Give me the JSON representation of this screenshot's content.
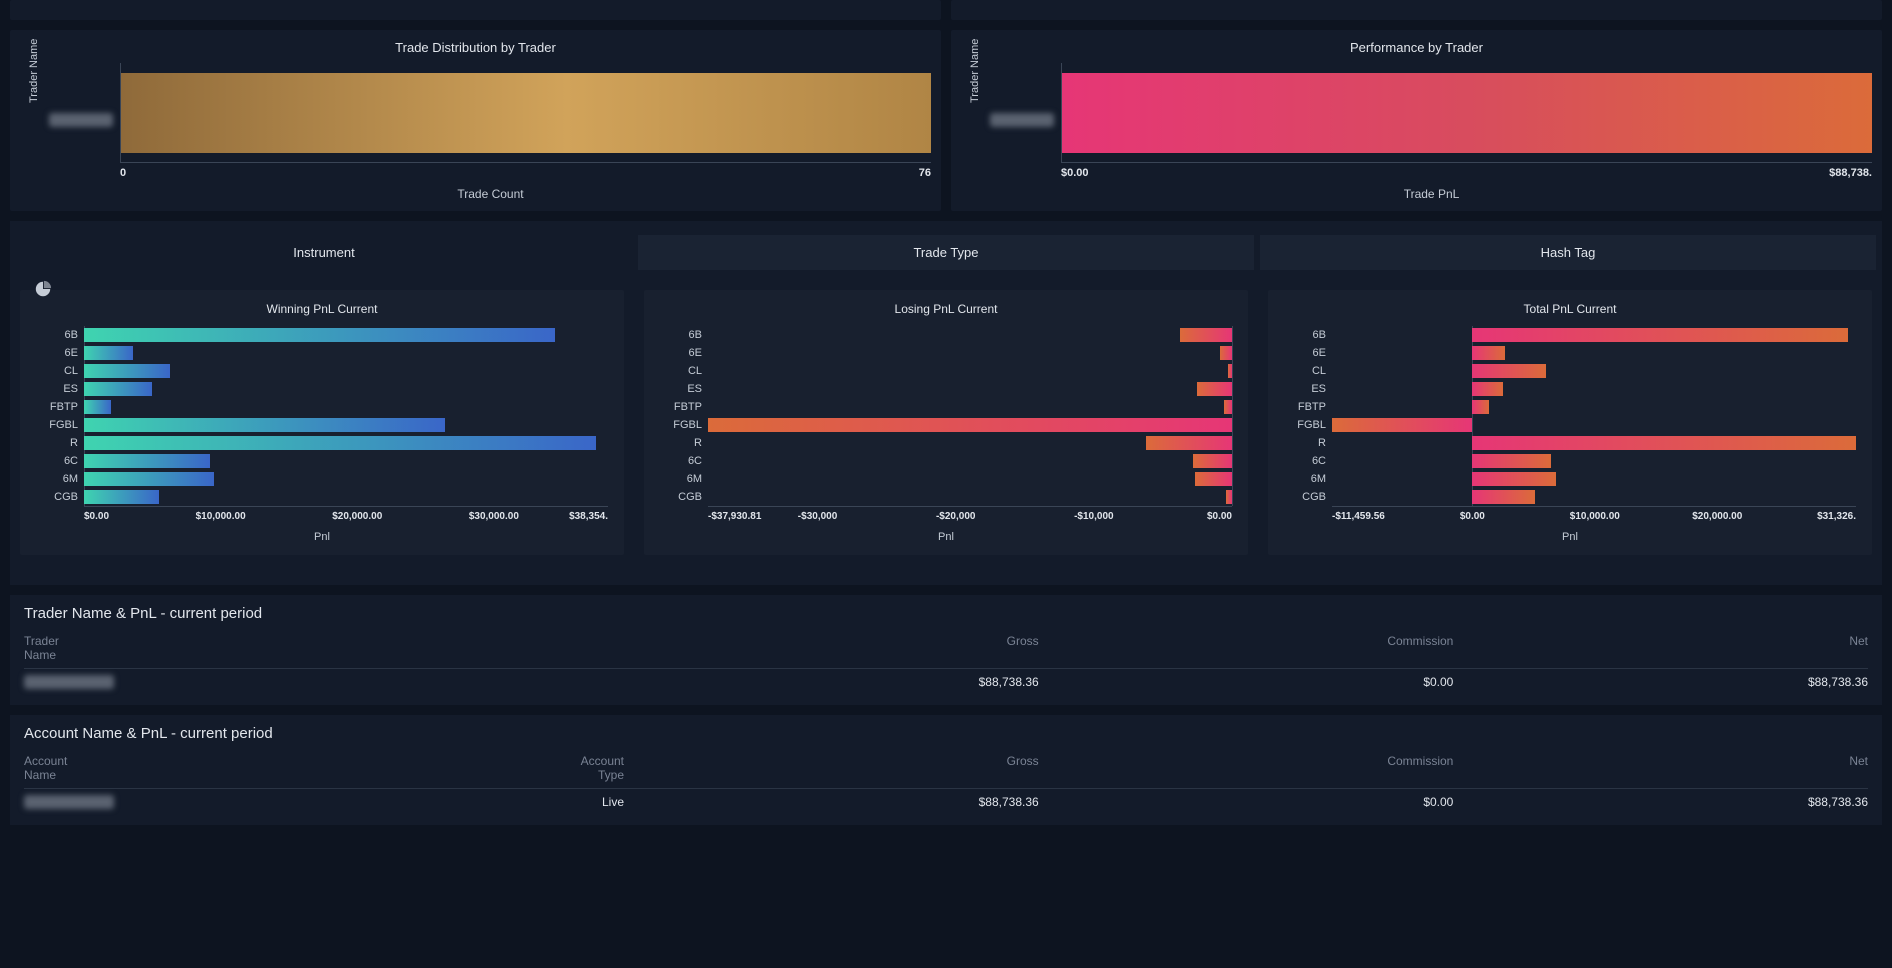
{
  "colors": {
    "page_bg": "#0d1420",
    "panel_bg": "#131b2a",
    "sub_panel_bg": "#18202f",
    "text": "#c5ccd6",
    "text_bright": "#e2e6ec",
    "text_muted": "#7a8394",
    "axis": "#3a4556",
    "gold_grad_from": "#8f6a3a",
    "gold_grad_to": "#d1a35a",
    "pink_orange_from": "#e63676",
    "pink_orange_to": "#db6b3a",
    "teal_blue_from": "#3fd4b0",
    "teal_blue_to": "#3a66c8"
  },
  "top_charts": {
    "distribution": {
      "title": "Trade Distribution by Trader",
      "y_axis_label": "Trader Name",
      "x_axis_label": "Trade Count",
      "x_min_label": "0",
      "x_max_label": "76",
      "x_min": 0,
      "x_max": 76,
      "value": 76,
      "bar_gradient": [
        "#8f6a3a",
        "#d1a35a",
        "#b08545"
      ],
      "category_blurred": true
    },
    "performance": {
      "title": "Performance by Trader",
      "y_axis_label": "Trader Name",
      "x_axis_label": "Trade PnL",
      "x_min_label": "$0.00",
      "x_max_label": "$88,738.",
      "x_min": 0,
      "x_max": 88738,
      "value": 88738,
      "bar_gradient": [
        "#e63676",
        "#d84c5e",
        "#db6b3a"
      ],
      "category_blurred": true
    }
  },
  "tabs": {
    "items": [
      "Instrument",
      "Trade Type",
      "Hash Tag"
    ],
    "active": "Instrument"
  },
  "mini_charts": {
    "categories": [
      "6B",
      "6E",
      "CL",
      "ES",
      "FBTP",
      "FGBL",
      "R",
      "6C",
      "6M",
      "CGB"
    ],
    "winning": {
      "title": "Winning PnL Current",
      "x_label": "Pnl",
      "x_min": 0,
      "x_max": 38354,
      "ticks": [
        {
          "pos": 0,
          "label": "$0.00"
        },
        {
          "pos": 10000,
          "label": "$10,000.00"
        },
        {
          "pos": 20000,
          "label": "$20,000.00"
        },
        {
          "pos": 30000,
          "label": "$30,000.00"
        },
        {
          "pos": 38354,
          "label": "$38,354."
        }
      ],
      "values": [
        34500,
        3600,
        6300,
        5000,
        2000,
        26400,
        37500,
        9200,
        9500,
        5500
      ],
      "bar_gradient": [
        "#3fd4b0",
        "#3a66c8"
      ]
    },
    "losing": {
      "title": "Losing PnL Current",
      "x_label": "Pnl",
      "x_min": -37930.81,
      "x_max": 0,
      "ticks": [
        {
          "pos": -37930.81,
          "label": "-$37,930.81"
        },
        {
          "pos": -30000,
          "label": "-$30,000"
        },
        {
          "pos": -20000,
          "label": "-$20,000"
        },
        {
          "pos": -10000,
          "label": "-$10,000"
        },
        {
          "pos": 0,
          "label": "$0.00"
        }
      ],
      "values": [
        -3800,
        -900,
        -300,
        -2500,
        -600,
        -37930.81,
        -6200,
        -2800,
        -2700,
        -400
      ],
      "bar_gradient": [
        "#db6b3a",
        "#e63676"
      ]
    },
    "total": {
      "title": "Total PnL Current",
      "x_label": "Pnl",
      "x_min": -11459.56,
      "x_max": 31326,
      "ticks": [
        {
          "pos": -11459.56,
          "label": "-$11,459.56"
        },
        {
          "pos": 0,
          "label": "$0.00"
        },
        {
          "pos": 10000,
          "label": "$10,000.00"
        },
        {
          "pos": 20000,
          "label": "$20,000.00"
        },
        {
          "pos": 31326,
          "label": "$31,326."
        }
      ],
      "values": [
        30700,
        2700,
        6000,
        2500,
        1400,
        -11459.56,
        31326,
        6400,
        6800,
        5100
      ],
      "bar_gradient_pos": [
        "#e63676",
        "#db6b3a"
      ],
      "bar_gradient_neg": [
        "#db6b3a",
        "#e63676"
      ]
    }
  },
  "trader_table": {
    "title": "Trader Name & PnL - current period",
    "columns": {
      "name": "Trader\nName",
      "gross": "Gross",
      "commission": "Commission",
      "net": "Net"
    },
    "rows": [
      {
        "name_blurred": true,
        "gross": "$88,738.36",
        "commission": "$0.00",
        "net": "$88,738.36"
      }
    ]
  },
  "account_table": {
    "title": "Account Name & PnL - current period",
    "columns": {
      "name": "Account\nName",
      "type": "Account\nType",
      "gross": "Gross",
      "commission": "Commission",
      "net": "Net"
    },
    "rows": [
      {
        "name_blurred": true,
        "type": "Live",
        "gross": "$88,738.36",
        "commission": "$0.00",
        "net": "$88,738.36"
      }
    ]
  }
}
